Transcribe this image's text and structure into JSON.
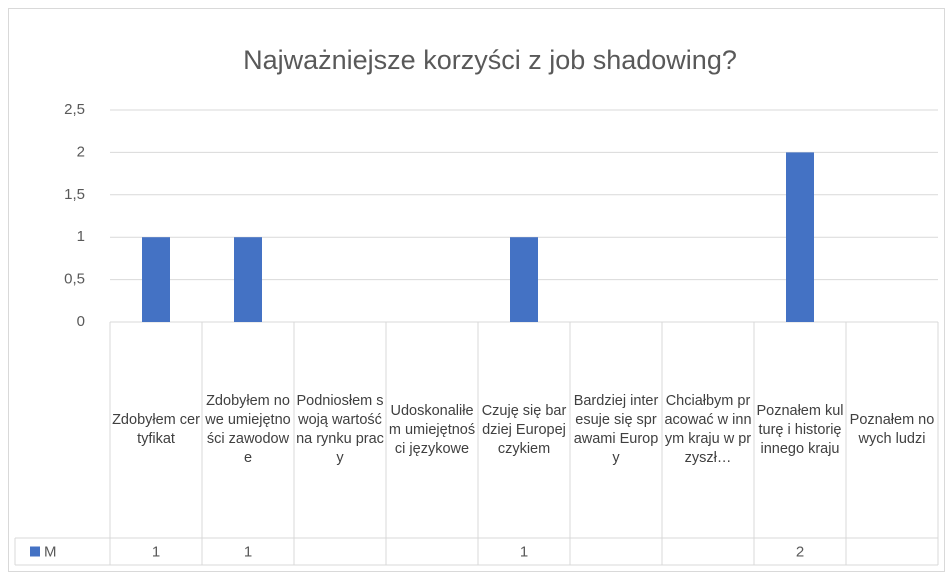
{
  "chart_data": {
    "type": "bar",
    "title": "Najważniejsze korzyści z job shadowing?",
    "categories": [
      "Zdobyłem certyfikat",
      "Zdobyłem nowe umiejętności zawodowe",
      "Podniosłem swoją wartość na rynku pracy",
      "Udoskonaliłem umiejętności językowe",
      "Czuję się bardziej Europejczykiem",
      "Bardziej interesuje się sprawami Europy",
      "Chciałbym pracować w innym kraju w przyszł…",
      "Poznałem kulturę i historię innego kraju",
      "Poznałem nowych ludzi"
    ],
    "series": [
      {
        "name": "M",
        "color": "#4472c4",
        "values": [
          1,
          1,
          null,
          null,
          1,
          null,
          null,
          2,
          null
        ]
      }
    ],
    "ylim": [
      0,
      2.5
    ],
    "yticks": [
      0,
      {
        "value": 0.5,
        "label": "0,5"
      },
      1,
      {
        "value": 1.5,
        "label": "1,5"
      },
      2,
      {
        "value": 2.5,
        "label": "2,5"
      }
    ],
    "grid": true,
    "data_table": true
  }
}
